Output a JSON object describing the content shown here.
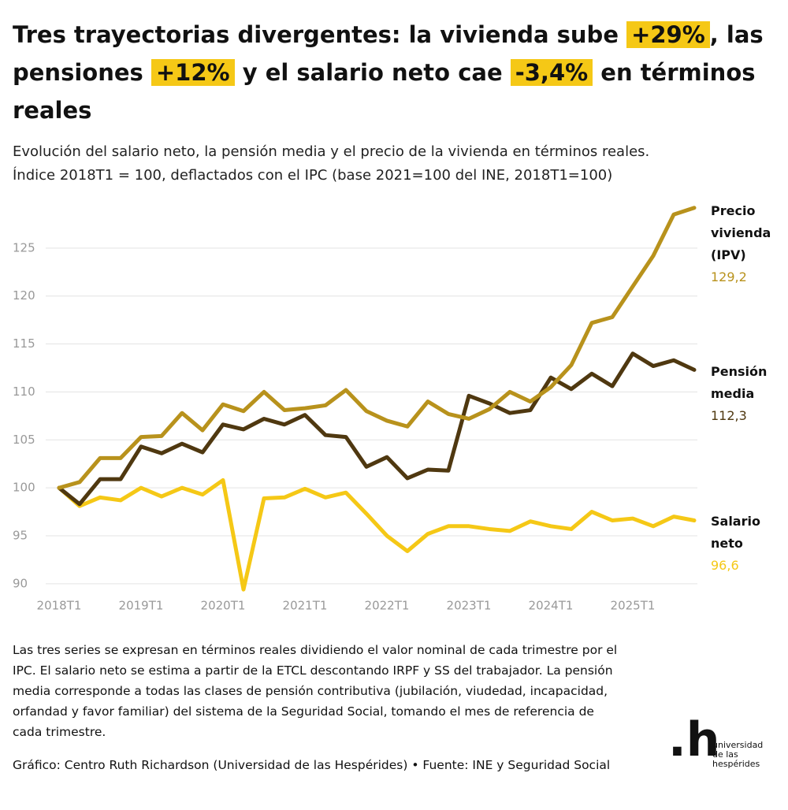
{
  "title": [
    "Tres trayectorias divergentes: la vivienda sube ",
    "+29%",
    ", las pensiones ",
    "+12%",
    " y el salario neto cae ",
    "-3,4%",
    " en términos reales"
  ],
  "subtitle": [
    "Evolución del salario neto, la pensión media y el precio de la vivienda en términos reales.",
    "Índice 2018T1 = 100, deflactados con el IPC (base 2021=100 del INE, 2018T1=100)"
  ],
  "chart_data": {
    "type": "line",
    "categories": [
      "2018T1",
      null,
      null,
      null,
      "2019T1",
      null,
      null,
      null,
      "2020T1",
      null,
      null,
      null,
      "2021T1",
      null,
      null,
      null,
      "2022T1",
      null,
      null,
      null,
      "2023T1",
      null,
      null,
      null,
      "2024T1",
      null,
      null,
      null,
      "2025T1",
      null,
      null,
      null
    ],
    "ylim": [
      89,
      130
    ],
    "yticks": [
      90,
      95,
      100,
      105,
      110,
      115,
      120,
      125
    ],
    "grid": true,
    "series": [
      {
        "name": "Precio vivienda (IPV)",
        "color": "#b8921c",
        "values": [
          100,
          100.6,
          103.1,
          103.1,
          105.3,
          105.4,
          107.8,
          106.0,
          108.7,
          108.0,
          110.0,
          108.1,
          108.3,
          108.6,
          110.2,
          108.0,
          107.0,
          106.4,
          109.0,
          107.7,
          107.2,
          108.2,
          110.0,
          109.0,
          110.5,
          112.8,
          117.2,
          117.8,
          121.0,
          124.2,
          128.5,
          129.2
        ],
        "value_labels": [
          null,
          null,
          null,
          null,
          null,
          null,
          null,
          null,
          null,
          null,
          null,
          null,
          null,
          null,
          null,
          null,
          null,
          null,
          null,
          null,
          null,
          null,
          null,
          null,
          null,
          null,
          null,
          null,
          null,
          null,
          null,
          "129,2"
        ]
      },
      {
        "name": "Pensión media",
        "color": "#4f3810",
        "values": [
          100,
          98.3,
          100.9,
          100.9,
          104.3,
          103.6,
          104.6,
          103.7,
          106.6,
          106.1,
          107.2,
          106.6,
          107.6,
          105.5,
          105.3,
          102.2,
          103.2,
          101.0,
          101.9,
          101.8,
          109.6,
          108.8,
          107.8,
          108.1,
          111.5,
          110.3,
          111.9,
          110.6,
          114.0,
          112.7,
          113.3,
          112.3
        ],
        "value_labels": [
          null,
          null,
          null,
          null,
          null,
          null,
          null,
          null,
          null,
          null,
          null,
          null,
          null,
          null,
          null,
          null,
          null,
          null,
          null,
          null,
          null,
          null,
          null,
          null,
          null,
          null,
          null,
          null,
          null,
          null,
          null,
          "112,3"
        ]
      },
      {
        "name": "Salario neto",
        "color": "#f5c816",
        "values": [
          100,
          98.1,
          99.0,
          98.7,
          100.0,
          99.1,
          100.0,
          99.3,
          100.8,
          89.4,
          98.9,
          99.0,
          99.9,
          99.0,
          99.5,
          97.3,
          95.0,
          93.4,
          95.2,
          96.0,
          96.0,
          95.7,
          95.5,
          96.5,
          96.0,
          95.7,
          97.5,
          96.6,
          96.8,
          96.0,
          97.0,
          96.6
        ],
        "value_labels": [
          null,
          null,
          null,
          null,
          null,
          null,
          null,
          null,
          null,
          null,
          null,
          null,
          null,
          null,
          null,
          null,
          null,
          null,
          null,
          null,
          null,
          null,
          null,
          null,
          null,
          null,
          null,
          null,
          null,
          null,
          null,
          "96,6"
        ]
      }
    ]
  },
  "note": "Las tres series se expresan en términos reales dividiendo el valor nominal de cada trimestre por el IPC. El salario neto se estima a partir de la ETCL descontando IRPF y SS del trabajador. La pensión media corresponde a todas las clases de pensión contributiva (jubilación, viudedad, incapacidad, orfandad y favor familiar) del sistema de la Seguridad Social, tomando el mes de referencia de cada trimestre.",
  "source": "Gráfico: Centro Ruth Richardson (Universidad de las Hespérides) • Fuente: INE y Seguridad Social",
  "logo": {
    "mark": ".h",
    "lines": [
      "universidad",
      "de las",
      "hespérides"
    ]
  }
}
